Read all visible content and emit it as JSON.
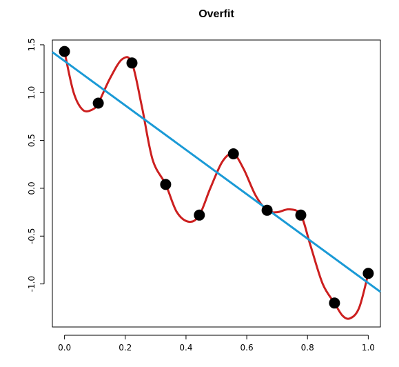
{
  "chart_data": {
    "type": "line",
    "title": "Overfit",
    "xlabel": "",
    "ylabel": "",
    "xlim": [
      -0.04,
      1.04
    ],
    "ylim": [
      -1.45,
      1.55
    ],
    "x_ticks": [
      0.0,
      0.2,
      0.4,
      0.6,
      0.8,
      1.0
    ],
    "x_tick_labels": [
      "0.0",
      "0.2",
      "0.4",
      "0.6",
      "0.8",
      "1.0"
    ],
    "y_ticks": [
      -1.0,
      -0.5,
      0.0,
      0.5,
      1.0,
      1.5
    ],
    "y_tick_labels": [
      "-1.0",
      "-0.5",
      "0.0",
      "0.5",
      "1.0",
      "1.5"
    ],
    "grid": false,
    "points": {
      "color": "#000000",
      "x": [
        0.0,
        0.111,
        0.222,
        0.333,
        0.444,
        0.556,
        0.667,
        0.778,
        0.889,
        1.0
      ],
      "y": [
        1.43,
        0.89,
        1.31,
        0.04,
        -0.28,
        0.36,
        -0.23,
        -0.28,
        -1.2,
        -0.89
      ]
    },
    "fit_line": {
      "color": "#1a9ad6",
      "intercept": 1.33,
      "slope": -2.32
    },
    "overfit_curve": {
      "color": "#cc1f1f",
      "x": [
        0.0,
        0.03,
        0.06,
        0.09,
        0.111,
        0.15,
        0.19,
        0.222,
        0.255,
        0.29,
        0.333,
        0.37,
        0.41,
        0.444,
        0.48,
        0.52,
        0.556,
        0.59,
        0.63,
        0.667,
        0.7,
        0.74,
        0.778,
        0.81,
        0.85,
        0.889,
        0.915,
        0.94,
        0.97,
        1.0
      ],
      "y": [
        1.43,
        1.0,
        0.82,
        0.82,
        0.89,
        1.15,
        1.35,
        1.31,
        0.85,
        0.3,
        0.04,
        -0.25,
        -0.35,
        -0.28,
        0.0,
        0.28,
        0.36,
        0.2,
        -0.08,
        -0.23,
        -0.25,
        -0.22,
        -0.28,
        -0.6,
        -1.0,
        -1.2,
        -1.33,
        -1.36,
        -1.25,
        -0.89
      ]
    }
  }
}
